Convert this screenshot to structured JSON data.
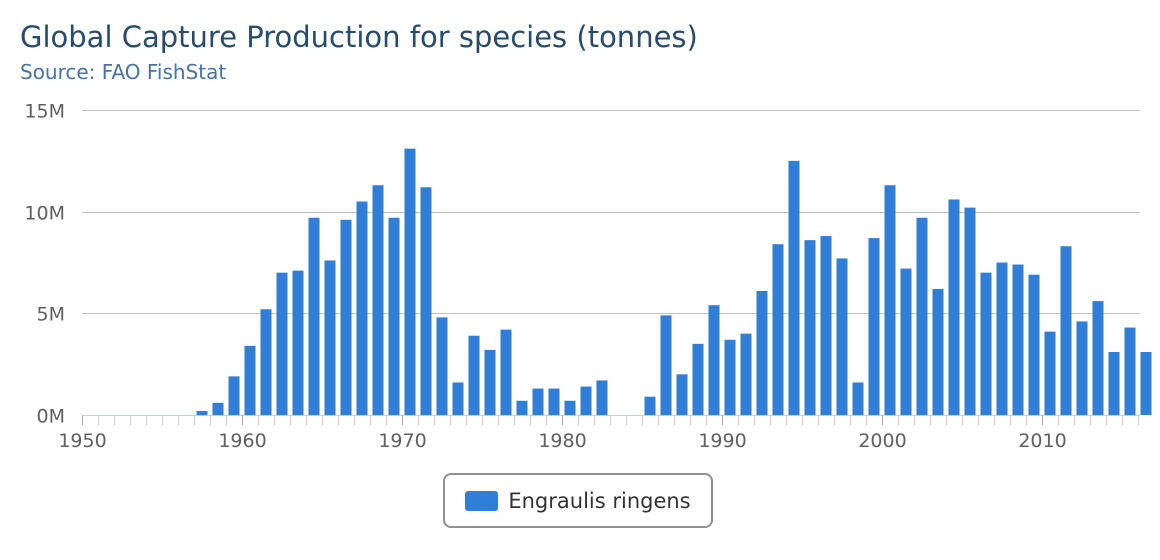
{
  "title": "Global Capture Production for species (tonnes)",
  "subtitle": "Source: FAO FishStat",
  "chart_data": {
    "type": "bar",
    "title": "Global Capture Production for species (tonnes)",
    "subtitle": "Source: FAO FishStat",
    "xlim": [
      1950,
      2016
    ],
    "ylim": [
      0,
      15000000
    ],
    "x_ticks": [
      {
        "value": 1950,
        "label": "1950"
      },
      {
        "value": 1960,
        "label": "1960"
      },
      {
        "value": 1970,
        "label": "1970"
      },
      {
        "value": 1980,
        "label": "1980"
      },
      {
        "value": 1990,
        "label": "1990"
      },
      {
        "value": 2000,
        "label": "2000"
      },
      {
        "value": 2010,
        "label": "2010"
      }
    ],
    "y_ticks": [
      {
        "value": 0,
        "label": "0M"
      },
      {
        "value": 5000000,
        "label": "5M"
      },
      {
        "value": 10000000,
        "label": "10M"
      },
      {
        "value": 15000000,
        "label": "15M"
      }
    ],
    "grid": true,
    "legend_position": "bottom-center",
    "series": [
      {
        "name": "Engraulis ringens",
        "color": "#2f7ed8",
        "x": [
          1950,
          1951,
          1952,
          1953,
          1954,
          1955,
          1956,
          1957,
          1958,
          1959,
          1960,
          1961,
          1962,
          1963,
          1964,
          1965,
          1966,
          1967,
          1968,
          1969,
          1970,
          1971,
          1972,
          1973,
          1974,
          1975,
          1976,
          1977,
          1978,
          1979,
          1980,
          1981,
          1982,
          1983,
          1984,
          1985,
          1986,
          1987,
          1988,
          1989,
          1990,
          1991,
          1992,
          1993,
          1994,
          1995,
          1996,
          1997,
          1998,
          1999,
          2000,
          2001,
          2002,
          2003,
          2004,
          2005,
          2006,
          2007,
          2008,
          2009,
          2010,
          2011,
          2012,
          2013,
          2014,
          2015,
          2016
        ],
        "values": [
          0,
          0,
          0,
          0,
          0,
          0,
          0,
          200000,
          600000,
          1900000,
          3400000,
          5200000,
          7000000,
          7100000,
          9700000,
          7600000,
          9600000,
          10500000,
          11300000,
          9700000,
          13100000,
          11200000,
          4800000,
          1600000,
          3900000,
          3200000,
          4200000,
          700000,
          1300000,
          1300000,
          700000,
          1400000,
          1700000,
          0,
          0,
          900000,
          4900000,
          2000000,
          3500000,
          5400000,
          3700000,
          4000000,
          6100000,
          8400000,
          12500000,
          8600000,
          8800000,
          7700000,
          1600000,
          8700000,
          11300000,
          7200000,
          9700000,
          6200000,
          10600000,
          10200000,
          7000000,
          7500000,
          7400000,
          6900000,
          4100000,
          8300000,
          4600000,
          5600000,
          3100000,
          4300000,
          3100000
        ]
      }
    ]
  }
}
